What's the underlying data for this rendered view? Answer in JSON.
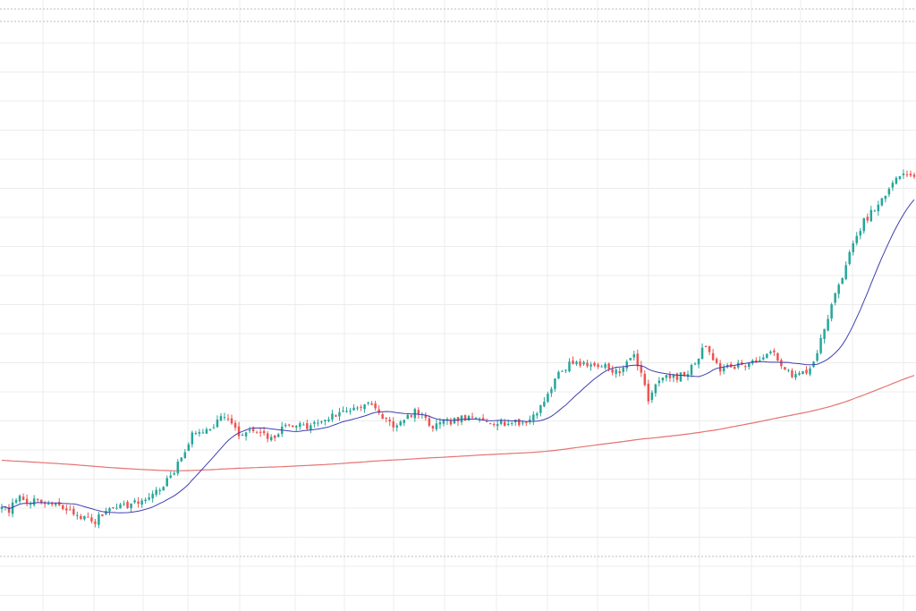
{
  "chart_data": {
    "type": "candlestick",
    "title": "",
    "xlabel": "",
    "ylabel": "",
    "grid": true,
    "axis_labels_visible": false,
    "legend": "none",
    "ylim": [
      0,
      100
    ],
    "x_count": 255,
    "colors": {
      "up": "#26a69a",
      "down": "#ef5350",
      "ma_fast": "#3f3fb0",
      "ma_slow": "#e57373",
      "grid": "#ececec",
      "dotted": "#bdbdbd"
    },
    "price_anchors": [
      [
        0,
        12
      ],
      [
        2,
        10
      ],
      [
        4,
        14
      ],
      [
        8,
        13
      ],
      [
        15,
        12
      ],
      [
        20,
        10
      ],
      [
        26,
        8
      ],
      [
        28,
        10
      ],
      [
        31,
        12
      ],
      [
        35,
        12
      ],
      [
        39,
        13
      ],
      [
        44,
        16
      ],
      [
        48,
        20
      ],
      [
        53,
        29
      ],
      [
        58,
        31
      ],
      [
        62,
        34
      ],
      [
        66,
        29
      ],
      [
        70,
        30
      ],
      [
        75,
        28
      ],
      [
        80,
        32
      ],
      [
        85,
        31
      ],
      [
        90,
        33
      ],
      [
        96,
        35
      ],
      [
        102,
        37
      ],
      [
        105,
        34
      ],
      [
        110,
        31
      ],
      [
        115,
        35
      ],
      [
        120,
        31
      ],
      [
        123,
        32
      ],
      [
        128,
        33
      ],
      [
        133,
        33
      ],
      [
        140,
        32
      ],
      [
        146,
        32
      ],
      [
        150,
        36
      ],
      [
        155,
        44
      ],
      [
        159,
        47
      ],
      [
        163,
        46
      ],
      [
        168,
        46
      ],
      [
        172,
        44
      ],
      [
        176,
        49
      ],
      [
        180,
        38
      ],
      [
        183,
        43
      ],
      [
        187,
        43
      ],
      [
        191,
        44
      ],
      [
        196,
        51
      ],
      [
        200,
        45
      ],
      [
        205,
        46
      ],
      [
        210,
        47
      ],
      [
        215,
        49
      ],
      [
        220,
        43
      ],
      [
        225,
        45
      ],
      [
        228,
        52
      ],
      [
        232,
        63
      ],
      [
        236,
        73
      ],
      [
        240,
        81
      ],
      [
        245,
        86
      ],
      [
        248,
        90
      ],
      [
        251,
        93
      ],
      [
        254,
        92
      ]
    ],
    "ma_fast_period": 18,
    "ma_slow_period": 200,
    "ma_slow_initial": 23,
    "seed": 7
  }
}
